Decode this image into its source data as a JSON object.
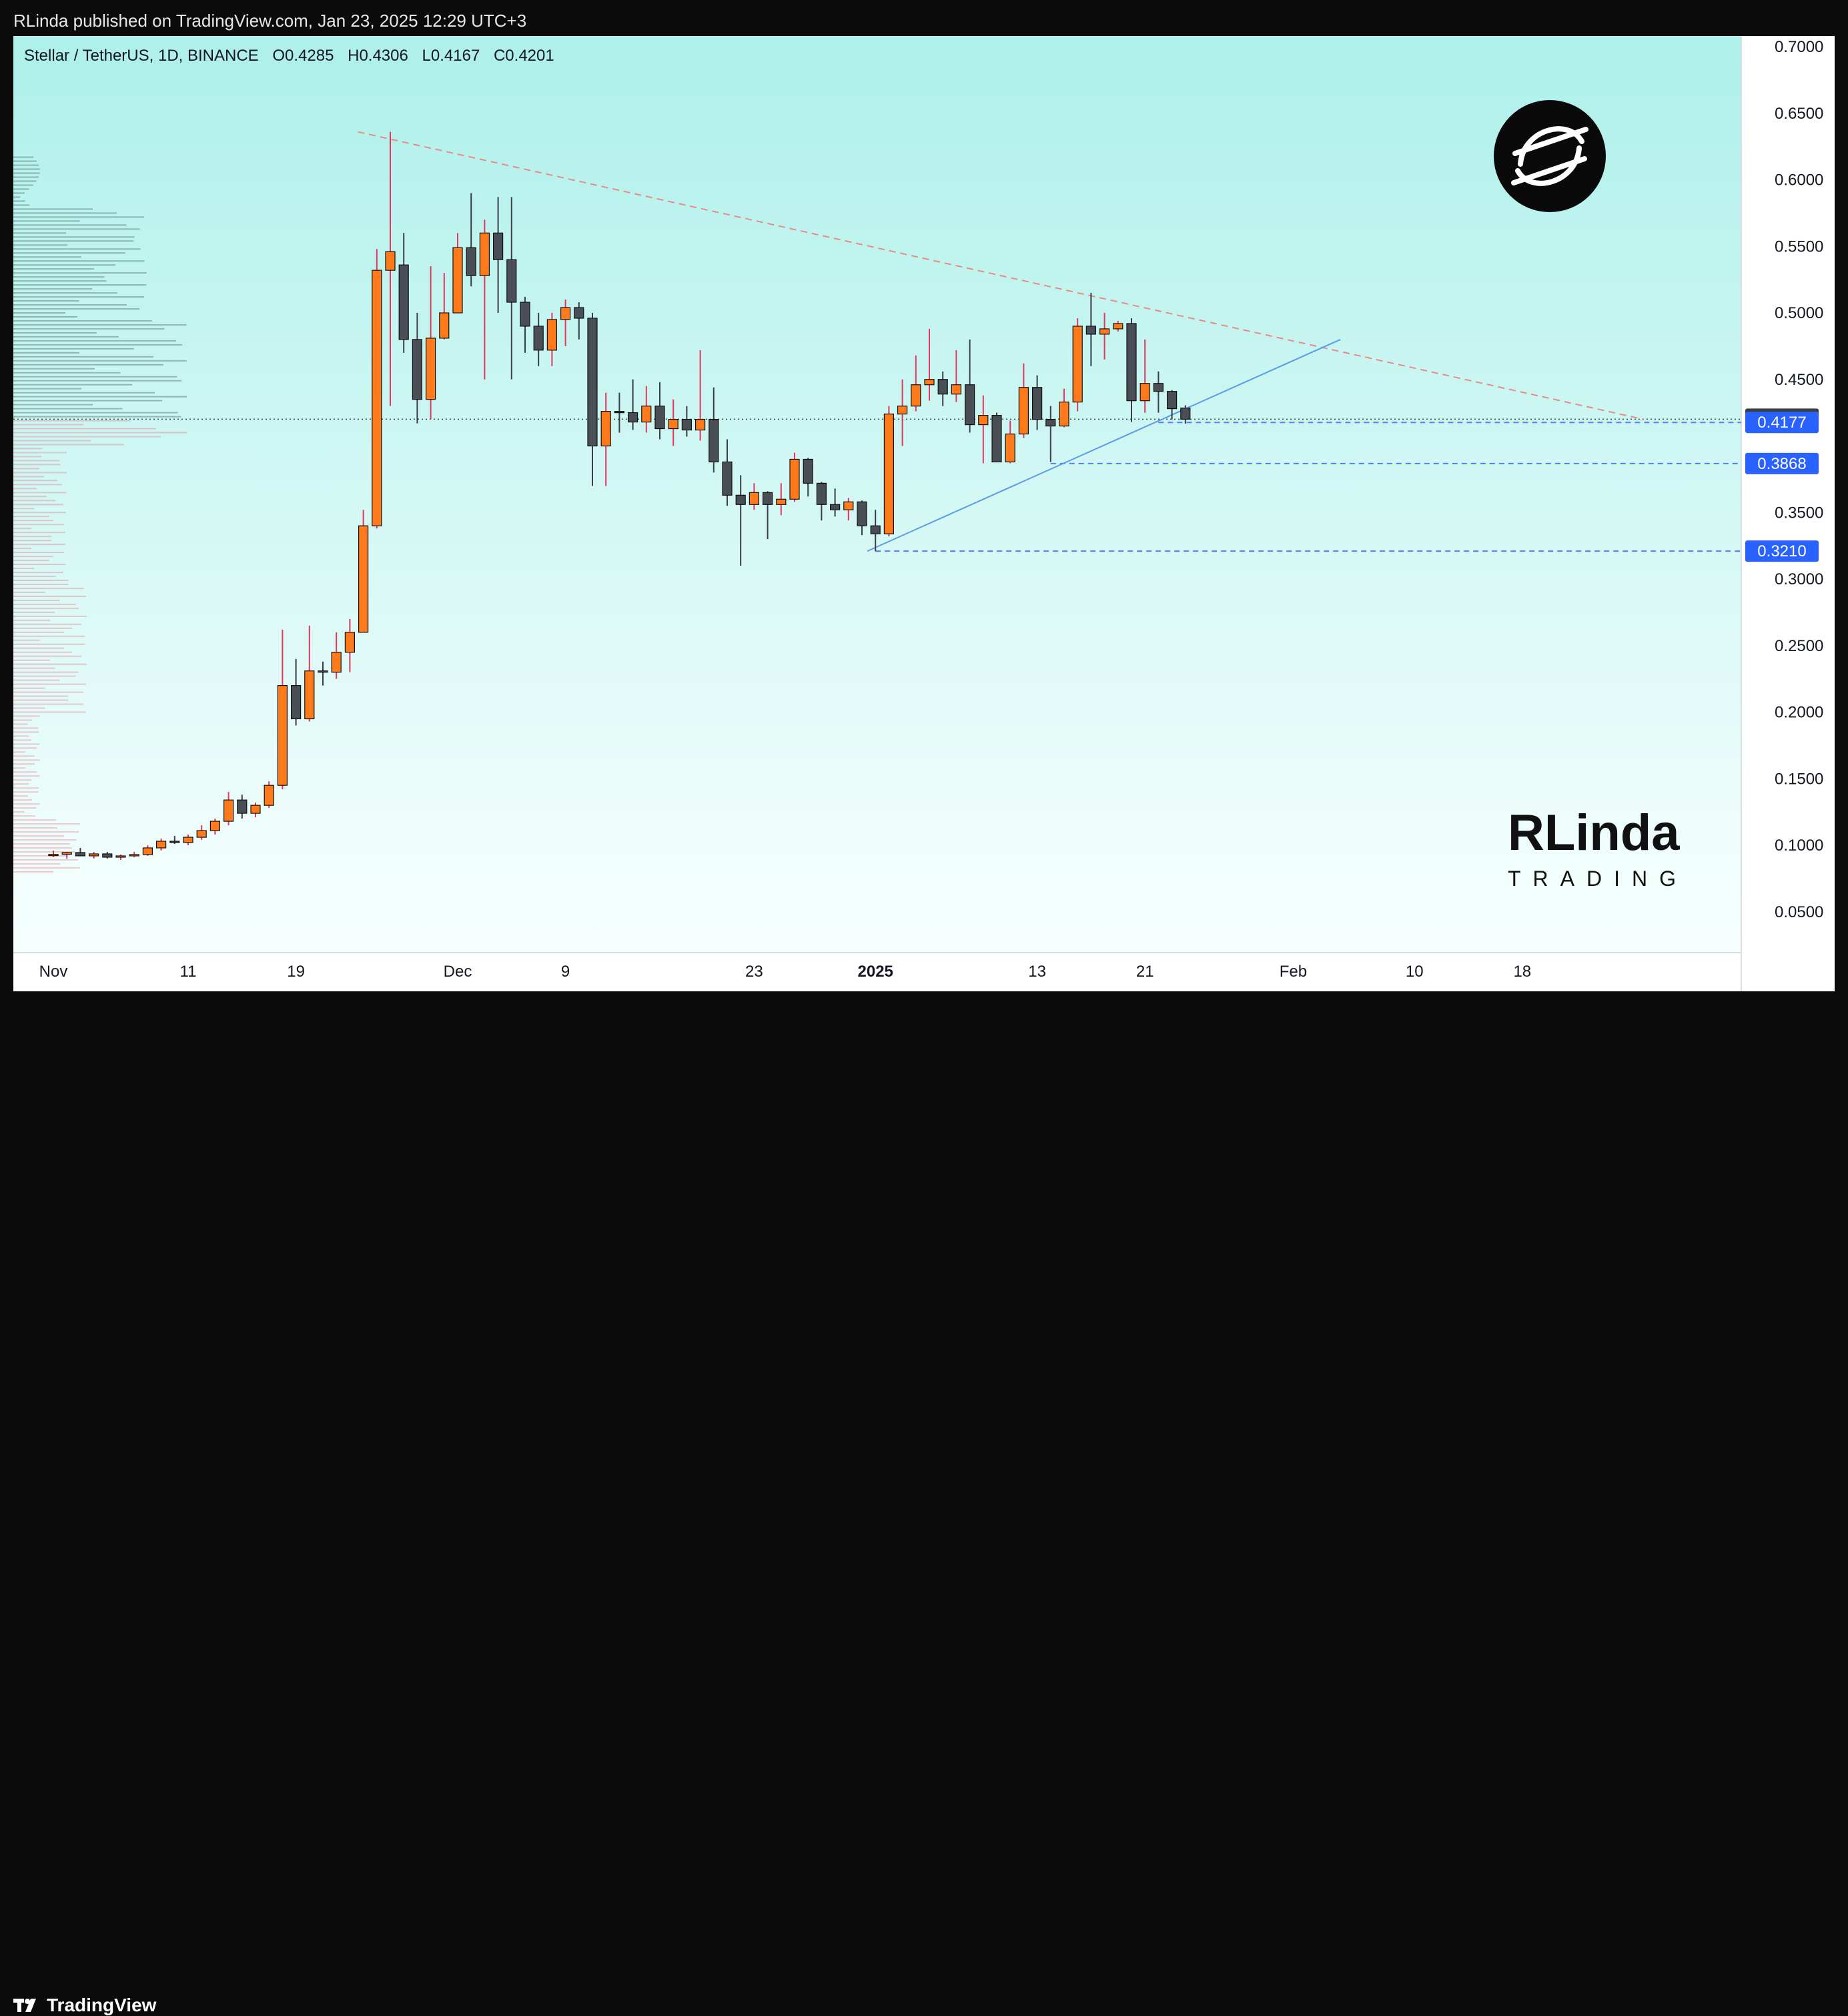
{
  "header": {
    "published": "RLinda published on TradingView.com, Jan 23, 2025 12:29 UTC+3"
  },
  "symbol": {
    "name": "Stellar / TetherUS, 1D, BINANCE",
    "open": "O0.4285",
    "high": "H0.4306",
    "low": "L0.4167",
    "close": "C0.4201"
  },
  "footer": {
    "brand": "TradingView"
  },
  "watermark": {
    "text_top": "RLinda",
    "text_bottom": "TRADING"
  },
  "colors": {
    "bullish": "#ff7a1a",
    "bearish": "#4a4e56",
    "bull_wick": "#e0365f",
    "resistance_line": "#e98a8a",
    "support_line": "#5b9be8",
    "level": "#2962ff",
    "bg_top": "#aef0ea",
    "bg_bottom": "#f7fffe"
  },
  "chart_data": {
    "type": "candlestick",
    "title": "Stellar / TetherUS, 1D, BINANCE",
    "ylim": [
      0,
      0.7
    ],
    "y_ticks": [
      "0.7000",
      "0.6500",
      "0.6000",
      "0.5500",
      "0.5000",
      "0.4500",
      "0.3500",
      "0.3000",
      "0.2500",
      "0.2000",
      "0.1500",
      "0.1000",
      "0.0500"
    ],
    "x_ticks": [
      {
        "label": "Nov",
        "day": 0
      },
      {
        "label": "11",
        "day": 10
      },
      {
        "label": "19",
        "day": 18
      },
      {
        "label": "Dec",
        "day": 30
      },
      {
        "label": "9",
        "day": 38
      },
      {
        "label": "23",
        "day": 52
      },
      {
        "label": "2025",
        "day": 61,
        "bold": true
      },
      {
        "label": "13",
        "day": 73
      },
      {
        "label": "21",
        "day": 81
      },
      {
        "label": "Feb",
        "day": 92
      },
      {
        "label": "10",
        "day": 101
      },
      {
        "label": "18",
        "day": 109
      }
    ],
    "price_labels": [
      {
        "value": 0.4201,
        "text": "0.4201",
        "style": "last"
      },
      {
        "value": 0.4177,
        "text": "0.4177",
        "style": "level"
      },
      {
        "value": 0.3868,
        "text": "0.3868",
        "style": "level"
      },
      {
        "value": 0.321,
        "text": "0.3210",
        "style": "level"
      }
    ],
    "trendlines": [
      {
        "kind": "resistance",
        "from": [
          22.6,
          0.636
        ],
        "to": [
          118,
          0.42
        ]
      },
      {
        "kind": "support",
        "from": [
          60.4,
          0.321
        ],
        "to": [
          95.5,
          0.48
        ]
      }
    ],
    "horizontal_levels": [
      {
        "value": 0.4177,
        "from_day": 82
      },
      {
        "value": 0.3868,
        "from_day": 74
      },
      {
        "value": 0.321,
        "from_day": 61
      }
    ],
    "candles": [
      {
        "d": 0,
        "o": 0.0932,
        "h": 0.096,
        "l": 0.091,
        "c": 0.0932
      },
      {
        "d": 1,
        "o": 0.0932,
        "h": 0.095,
        "l": 0.09,
        "c": 0.0945
      },
      {
        "d": 2,
        "o": 0.0945,
        "h": 0.098,
        "l": 0.093,
        "c": 0.092
      },
      {
        "d": 3,
        "o": 0.092,
        "h": 0.095,
        "l": 0.09,
        "c": 0.0935
      },
      {
        "d": 4,
        "o": 0.0935,
        "h": 0.095,
        "l": 0.09,
        "c": 0.091
      },
      {
        "d": 5,
        "o": 0.091,
        "h": 0.093,
        "l": 0.089,
        "c": 0.092
      },
      {
        "d": 6,
        "o": 0.092,
        "h": 0.095,
        "l": 0.091,
        "c": 0.093
      },
      {
        "d": 7,
        "o": 0.093,
        "h": 0.1,
        "l": 0.092,
        "c": 0.098
      },
      {
        "d": 8,
        "o": 0.098,
        "h": 0.105,
        "l": 0.096,
        "c": 0.103
      },
      {
        "d": 9,
        "o": 0.103,
        "h": 0.107,
        "l": 0.101,
        "c": 0.102
      },
      {
        "d": 10,
        "o": 0.102,
        "h": 0.108,
        "l": 0.1,
        "c": 0.106
      },
      {
        "d": 11,
        "o": 0.106,
        "h": 0.115,
        "l": 0.104,
        "c": 0.111
      },
      {
        "d": 12,
        "o": 0.111,
        "h": 0.12,
        "l": 0.108,
        "c": 0.118
      },
      {
        "d": 13,
        "o": 0.118,
        "h": 0.14,
        "l": 0.115,
        "c": 0.134
      },
      {
        "d": 14,
        "o": 0.134,
        "h": 0.138,
        "l": 0.12,
        "c": 0.124
      },
      {
        "d": 15,
        "o": 0.124,
        "h": 0.132,
        "l": 0.121,
        "c": 0.13
      },
      {
        "d": 16,
        "o": 0.13,
        "h": 0.148,
        "l": 0.128,
        "c": 0.145
      },
      {
        "d": 17,
        "o": 0.145,
        "h": 0.262,
        "l": 0.142,
        "c": 0.22
      },
      {
        "d": 18,
        "o": 0.22,
        "h": 0.24,
        "l": 0.19,
        "c": 0.195
      },
      {
        "d": 19,
        "o": 0.195,
        "h": 0.265,
        "l": 0.193,
        "c": 0.231
      },
      {
        "d": 20,
        "o": 0.231,
        "h": 0.238,
        "l": 0.22,
        "c": 0.23
      },
      {
        "d": 21,
        "o": 0.23,
        "h": 0.26,
        "l": 0.225,
        "c": 0.245
      },
      {
        "d": 22,
        "o": 0.245,
        "h": 0.27,
        "l": 0.23,
        "c": 0.26
      },
      {
        "d": 23,
        "o": 0.26,
        "h": 0.352,
        "l": 0.26,
        "c": 0.34
      },
      {
        "d": 24,
        "o": 0.34,
        "h": 0.548,
        "l": 0.338,
        "c": 0.532
      },
      {
        "d": 25,
        "o": 0.532,
        "h": 0.636,
        "l": 0.43,
        "c": 0.546
      },
      {
        "d": 26,
        "o": 0.536,
        "h": 0.56,
        "l": 0.47,
        "c": 0.48
      },
      {
        "d": 27,
        "o": 0.48,
        "h": 0.5,
        "l": 0.417,
        "c": 0.435
      },
      {
        "d": 28,
        "o": 0.435,
        "h": 0.535,
        "l": 0.42,
        "c": 0.481
      },
      {
        "d": 29,
        "o": 0.481,
        "h": 0.53,
        "l": 0.48,
        "c": 0.5
      },
      {
        "d": 30,
        "o": 0.5,
        "h": 0.56,
        "l": 0.5,
        "c": 0.549
      },
      {
        "d": 31,
        "o": 0.549,
        "h": 0.59,
        "l": 0.52,
        "c": 0.528
      },
      {
        "d": 32,
        "o": 0.528,
        "h": 0.57,
        "l": 0.45,
        "c": 0.56
      },
      {
        "d": 33,
        "o": 0.56,
        "h": 0.587,
        "l": 0.5,
        "c": 0.54
      },
      {
        "d": 34,
        "o": 0.54,
        "h": 0.587,
        "l": 0.45,
        "c": 0.508
      },
      {
        "d": 35,
        "o": 0.508,
        "h": 0.512,
        "l": 0.47,
        "c": 0.49
      },
      {
        "d": 36,
        "o": 0.49,
        "h": 0.5,
        "l": 0.46,
        "c": 0.472
      },
      {
        "d": 37,
        "o": 0.472,
        "h": 0.5,
        "l": 0.46,
        "c": 0.495
      },
      {
        "d": 38,
        "o": 0.495,
        "h": 0.51,
        "l": 0.475,
        "c": 0.504
      },
      {
        "d": 39,
        "o": 0.504,
        "h": 0.508,
        "l": 0.48,
        "c": 0.496
      },
      {
        "d": 40,
        "o": 0.496,
        "h": 0.5,
        "l": 0.37,
        "c": 0.4
      },
      {
        "d": 41,
        "o": 0.4,
        "h": 0.44,
        "l": 0.37,
        "c": 0.426
      },
      {
        "d": 42,
        "o": 0.426,
        "h": 0.44,
        "l": 0.41,
        "c": 0.425
      },
      {
        "d": 43,
        "o": 0.425,
        "h": 0.45,
        "l": 0.412,
        "c": 0.418
      },
      {
        "d": 44,
        "o": 0.418,
        "h": 0.445,
        "l": 0.41,
        "c": 0.43
      },
      {
        "d": 45,
        "o": 0.43,
        "h": 0.448,
        "l": 0.405,
        "c": 0.413
      },
      {
        "d": 46,
        "o": 0.413,
        "h": 0.435,
        "l": 0.4,
        "c": 0.42
      },
      {
        "d": 47,
        "o": 0.42,
        "h": 0.43,
        "l": 0.407,
        "c": 0.412
      },
      {
        "d": 48,
        "o": 0.412,
        "h": 0.472,
        "l": 0.404,
        "c": 0.42
      },
      {
        "d": 49,
        "o": 0.42,
        "h": 0.444,
        "l": 0.38,
        "c": 0.388
      },
      {
        "d": 50,
        "o": 0.388,
        "h": 0.405,
        "l": 0.355,
        "c": 0.363
      },
      {
        "d": 51,
        "o": 0.363,
        "h": 0.378,
        "l": 0.31,
        "c": 0.356
      },
      {
        "d": 52,
        "o": 0.356,
        "h": 0.372,
        "l": 0.352,
        "c": 0.365
      },
      {
        "d": 53,
        "o": 0.365,
        "h": 0.366,
        "l": 0.33,
        "c": 0.356
      },
      {
        "d": 54,
        "o": 0.356,
        "h": 0.372,
        "l": 0.348,
        "c": 0.36
      },
      {
        "d": 55,
        "o": 0.36,
        "h": 0.395,
        "l": 0.358,
        "c": 0.39
      },
      {
        "d": 56,
        "o": 0.39,
        "h": 0.391,
        "l": 0.362,
        "c": 0.372
      },
      {
        "d": 57,
        "o": 0.372,
        "h": 0.373,
        "l": 0.344,
        "c": 0.356
      },
      {
        "d": 58,
        "o": 0.356,
        "h": 0.368,
        "l": 0.347,
        "c": 0.352
      },
      {
        "d": 59,
        "o": 0.352,
        "h": 0.361,
        "l": 0.344,
        "c": 0.358
      },
      {
        "d": 60,
        "o": 0.358,
        "h": 0.359,
        "l": 0.333,
        "c": 0.34
      },
      {
        "d": 61,
        "o": 0.34,
        "h": 0.352,
        "l": 0.321,
        "c": 0.334
      },
      {
        "d": 62,
        "o": 0.334,
        "h": 0.43,
        "l": 0.332,
        "c": 0.424
      },
      {
        "d": 63,
        "o": 0.424,
        "h": 0.45,
        "l": 0.4,
        "c": 0.43
      },
      {
        "d": 64,
        "o": 0.43,
        "h": 0.468,
        "l": 0.426,
        "c": 0.446
      },
      {
        "d": 65,
        "o": 0.446,
        "h": 0.488,
        "l": 0.434,
        "c": 0.45
      },
      {
        "d": 66,
        "o": 0.45,
        "h": 0.456,
        "l": 0.43,
        "c": 0.439
      },
      {
        "d": 67,
        "o": 0.439,
        "h": 0.472,
        "l": 0.433,
        "c": 0.446
      },
      {
        "d": 68,
        "o": 0.446,
        "h": 0.48,
        "l": 0.41,
        "c": 0.416
      },
      {
        "d": 69,
        "o": 0.416,
        "h": 0.438,
        "l": 0.387,
        "c": 0.423
      },
      {
        "d": 70,
        "o": 0.423,
        "h": 0.425,
        "l": 0.388,
        "c": 0.388
      },
      {
        "d": 71,
        "o": 0.388,
        "h": 0.419,
        "l": 0.387,
        "c": 0.409
      },
      {
        "d": 72,
        "o": 0.409,
        "h": 0.462,
        "l": 0.406,
        "c": 0.444
      },
      {
        "d": 73,
        "o": 0.444,
        "h": 0.453,
        "l": 0.412,
        "c": 0.42
      },
      {
        "d": 74,
        "o": 0.42,
        "h": 0.43,
        "l": 0.388,
        "c": 0.415
      },
      {
        "d": 75,
        "o": 0.415,
        "h": 0.443,
        "l": 0.414,
        "c": 0.433
      },
      {
        "d": 76,
        "o": 0.433,
        "h": 0.496,
        "l": 0.426,
        "c": 0.49
      },
      {
        "d": 77,
        "o": 0.49,
        "h": 0.515,
        "l": 0.46,
        "c": 0.484
      },
      {
        "d": 78,
        "o": 0.484,
        "h": 0.5,
        "l": 0.465,
        "c": 0.488
      },
      {
        "d": 79,
        "o": 0.488,
        "h": 0.494,
        "l": 0.486,
        "c": 0.492
      },
      {
        "d": 80,
        "o": 0.492,
        "h": 0.496,
        "l": 0.418,
        "c": 0.434
      },
      {
        "d": 81,
        "o": 0.434,
        "h": 0.48,
        "l": 0.425,
        "c": 0.447
      },
      {
        "d": 82,
        "o": 0.447,
        "h": 0.456,
        "l": 0.425,
        "c": 0.441
      },
      {
        "d": 83,
        "o": 0.441,
        "h": 0.442,
        "l": 0.42,
        "c": 0.428
      },
      {
        "d": 84,
        "o": 0.4285,
        "h": 0.4306,
        "l": 0.4167,
        "c": 0.4201
      }
    ]
  }
}
